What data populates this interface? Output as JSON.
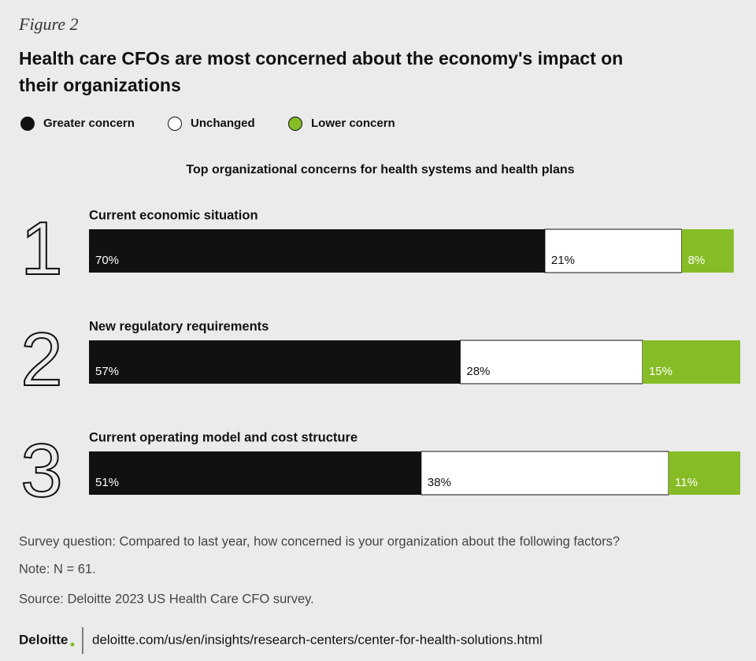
{
  "chart_data": {
    "type": "stacked-barh",
    "figure_label": "Figure 2",
    "title": [
      "Health care CFOs are most concerned about the economy's impact on",
      "their organizations"
    ],
    "subtitle": "Top organizational concerns for health systems and health plans",
    "ranks": [
      1,
      2,
      3
    ],
    "categories": [
      "Current economic situation",
      "New regulatory requirements",
      "Current operating model and cost structure"
    ],
    "series": [
      {
        "name": "Greater concern",
        "color": "#111111",
        "values": [
          70,
          57,
          51
        ],
        "value_labels": [
          "70%",
          "57%",
          "51%"
        ]
      },
      {
        "name": "Unchanged",
        "color": "#ffffff",
        "values": [
          21,
          28,
          38
        ],
        "value_labels": [
          "21%",
          "28%",
          "38%"
        ]
      },
      {
        "name": "Lower concern",
        "color": "#86bc25",
        "values": [
          8,
          15,
          11
        ],
        "value_labels": [
          "8%",
          "15%",
          "11%"
        ]
      }
    ],
    "xlim": [
      0,
      100
    ],
    "legend": "top-left",
    "notes": [
      "Survey question: Compared to last year, how concerned is your organization about the following factors?",
      "Note: N = 61.",
      "Source: Deloitte 2023 US Health Care CFO survey."
    ],
    "footer": {
      "brand": "Deloitte",
      "url": "deloitte.com/us/en/insights/research-centers/center-for-health-solutions.html"
    }
  }
}
